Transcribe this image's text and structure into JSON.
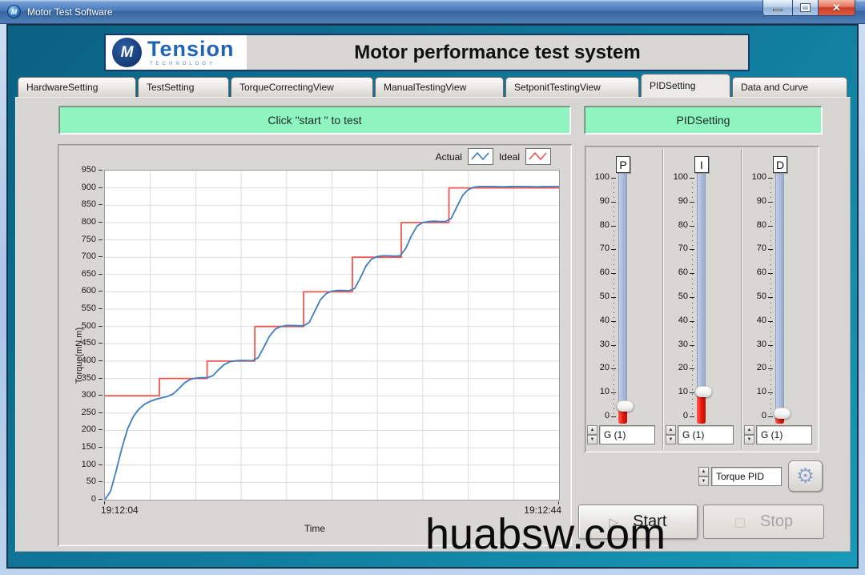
{
  "window": {
    "title": "Motor Test Software"
  },
  "header": {
    "brand": "Tension",
    "brand_sub": "TECHNOLOGY",
    "brand_monogram": "M",
    "title": "Motor performance test system"
  },
  "tabs": [
    {
      "label": "HardwareSetting",
      "active": false
    },
    {
      "label": "TestSetting",
      "active": false
    },
    {
      "label": "TorqueCorrectingView",
      "active": false
    },
    {
      "label": "ManualTestingView",
      "active": false
    },
    {
      "label": "SetponitTestingView",
      "active": false
    },
    {
      "label": "PIDSetting",
      "active": true
    },
    {
      "label": "Data and Curve",
      "active": false
    }
  ],
  "banners": {
    "left": "Click \"start \" to test",
    "right": "PIDSetting"
  },
  "chart_data": {
    "type": "line",
    "xlabel": "Time",
    "ylabel": "Torque(mN.m)",
    "x_start_label": "19:12:04",
    "x_end_label": "19:12:44",
    "xlim_seconds": [
      0,
      40
    ],
    "ylim": [
      0,
      950
    ],
    "y_tick_step": 50,
    "x_grid_seconds": 4,
    "grid": true,
    "legend_position": "top-right",
    "legend": [
      {
        "name": "Actual",
        "color": "#3d7ebf"
      },
      {
        "name": "Ideal",
        "color": "#f2564e"
      }
    ],
    "series": [
      {
        "name": "Ideal",
        "color": "#f2564e",
        "points": [
          [
            0,
            300
          ],
          [
            4.8,
            300
          ],
          [
            4.8,
            350
          ],
          [
            9,
            350
          ],
          [
            9,
            400
          ],
          [
            13.2,
            400
          ],
          [
            13.2,
            500
          ],
          [
            17.5,
            500
          ],
          [
            17.5,
            600
          ],
          [
            21.8,
            600
          ],
          [
            21.8,
            700
          ],
          [
            26.1,
            700
          ],
          [
            26.1,
            800
          ],
          [
            30.3,
            800
          ],
          [
            30.3,
            900
          ],
          [
            40,
            900
          ]
        ]
      },
      {
        "name": "Actual",
        "color": "#3d7ebf",
        "points": [
          [
            0,
            0
          ],
          [
            0.5,
            25
          ],
          [
            1,
            85
          ],
          [
            1.5,
            150
          ],
          [
            2,
            205
          ],
          [
            2.5,
            240
          ],
          [
            3,
            262
          ],
          [
            3.5,
            276
          ],
          [
            4,
            284
          ],
          [
            4.5,
            290
          ],
          [
            5,
            294
          ],
          [
            5.5,
            298
          ],
          [
            6,
            305
          ],
          [
            6.5,
            320
          ],
          [
            7,
            337
          ],
          [
            7.5,
            347
          ],
          [
            8,
            351
          ],
          [
            8.5,
            352
          ],
          [
            9,
            352
          ],
          [
            9.5,
            358
          ],
          [
            10,
            375
          ],
          [
            10.5,
            390
          ],
          [
            11,
            398
          ],
          [
            11.5,
            401
          ],
          [
            12,
            402
          ],
          [
            12.5,
            402
          ],
          [
            13,
            401
          ],
          [
            13.5,
            410
          ],
          [
            14,
            440
          ],
          [
            14.5,
            472
          ],
          [
            15,
            492
          ],
          [
            15.5,
            500
          ],
          [
            16,
            503
          ],
          [
            16.5,
            503
          ],
          [
            17,
            502
          ],
          [
            17.5,
            502
          ],
          [
            18,
            512
          ],
          [
            18.5,
            545
          ],
          [
            19,
            578
          ],
          [
            19.5,
            595
          ],
          [
            20,
            602
          ],
          [
            20.5,
            604
          ],
          [
            21,
            604
          ],
          [
            21.5,
            603
          ],
          [
            22,
            610
          ],
          [
            22.5,
            640
          ],
          [
            23,
            675
          ],
          [
            23.5,
            695
          ],
          [
            24,
            702
          ],
          [
            24.5,
            704
          ],
          [
            25,
            704
          ],
          [
            25.5,
            703
          ],
          [
            26,
            704
          ],
          [
            26.5,
            725
          ],
          [
            27,
            762
          ],
          [
            27.5,
            790
          ],
          [
            28,
            800
          ],
          [
            28.5,
            803
          ],
          [
            29,
            804
          ],
          [
            29.5,
            803
          ],
          [
            30,
            803
          ],
          [
            30.5,
            812
          ],
          [
            31,
            845
          ],
          [
            31.5,
            878
          ],
          [
            32,
            895
          ],
          [
            32.5,
            902
          ],
          [
            33,
            904
          ],
          [
            34,
            904
          ],
          [
            35,
            903
          ],
          [
            36,
            904
          ],
          [
            37,
            904
          ],
          [
            38,
            903
          ],
          [
            39,
            904
          ],
          [
            40,
            904
          ]
        ]
      }
    ]
  },
  "pid_panel": {
    "scale": {
      "min": 0,
      "max": 100,
      "step": 10
    },
    "sliders": [
      {
        "label": "P",
        "value": 4,
        "gain_label": "G (1)"
      },
      {
        "label": "I",
        "value": 10,
        "gain_label": "G (1)"
      },
      {
        "label": "D",
        "value": 1,
        "gain_label": "G (1)"
      }
    ]
  },
  "controls": {
    "pid_selector_value": "Torque PID",
    "gear_icon": "gear",
    "start_label": "Start",
    "stop_label": "Stop",
    "stop_enabled": false
  },
  "colors": {
    "teal_background": "#117c9d",
    "banner_green": "#8ef5c1",
    "actual_line": "#3d7ebf",
    "ideal_line": "#f2564e",
    "slider_fill_red": "#e01507"
  },
  "watermark": "huabsw.com"
}
